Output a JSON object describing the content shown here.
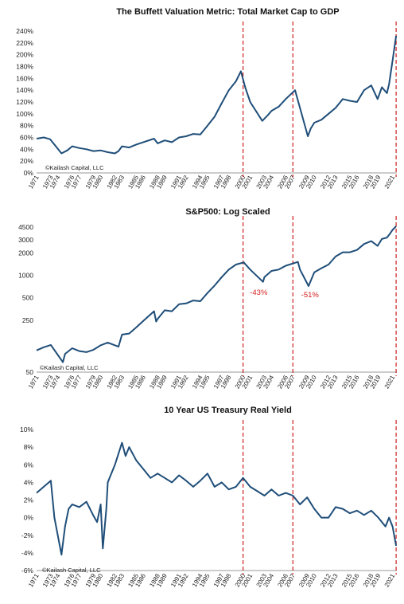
{
  "colors": {
    "line": "#1f4e79",
    "marker": "#cc1f1f",
    "axis": "#999999"
  },
  "chart_data": [
    {
      "type": "line",
      "title": "The Buffett Valuation Metric: Total Market Cap to GDP",
      "ylabel": "",
      "yscale": "linear",
      "ylim": [
        0,
        240
      ],
      "yticks": [
        0,
        20,
        40,
        60,
        80,
        100,
        120,
        140,
        160,
        180,
        200,
        220,
        240
      ],
      "ytick_labels": [
        "0%",
        "20%",
        "40%",
        "60%",
        "80%",
        "100%",
        "120%",
        "140%",
        "160%",
        "180%",
        "200%",
        "220%",
        "240%"
      ],
      "xticks": [
        1971,
        1973,
        1974,
        1976,
        1977,
        1979,
        1980,
        1982,
        1983,
        1985,
        1986,
        1988,
        1989,
        1991,
        1992,
        1994,
        1995,
        1997,
        1998,
        2000,
        2001,
        2003,
        2004,
        2006,
        2007,
        2009,
        2010,
        2012,
        2013,
        2015,
        2016,
        2018,
        2019,
        2021
      ],
      "xlim": [
        1971,
        2021.6
      ],
      "vlines": [
        2000,
        2007,
        2021.5
      ],
      "source_note": "©Kailash Capital, LLC",
      "series": [
        {
          "x": [
            1971,
            1972,
            1972.9,
            1973.5,
            1974.5,
            1975.3,
            1976,
            1977,
            1978,
            1979,
            1980,
            1981,
            1982,
            1982.5,
            1983,
            1984,
            1985,
            1986,
            1987.5,
            1988,
            1989,
            1990,
            1991,
            1992,
            1993,
            1994,
            1995,
            1996,
            1997,
            1998,
            1999,
            1999.7,
            2000.3,
            2001,
            2002.7,
            2003.5,
            2004,
            2005,
            2006,
            2007.3,
            2008,
            2009.1,
            2009.5,
            2010,
            2011,
            2012,
            2013,
            2014,
            2015,
            2016,
            2017,
            2018,
            2018.9,
            2019.5,
            2020.2,
            2020.5,
            2021,
            2021.5
          ],
          "y": [
            58,
            60,
            57,
            48,
            33,
            38,
            45,
            42,
            40,
            37,
            38,
            35,
            33,
            37,
            45,
            43,
            48,
            52,
            58,
            50,
            55,
            52,
            60,
            62,
            66,
            65,
            80,
            95,
            118,
            140,
            155,
            172,
            145,
            120,
            88,
            98,
            105,
            112,
            125,
            140,
            110,
            62,
            75,
            85,
            90,
            100,
            110,
            125,
            122,
            120,
            140,
            148,
            125,
            145,
            135,
            150,
            190,
            232
          ]
        }
      ]
    },
    {
      "type": "line",
      "title": "S&P500: Log Scaled",
      "ylabel": "",
      "yscale": "log",
      "ylim": [
        50,
        4700
      ],
      "yticks": [
        50,
        250,
        500,
        1000,
        2000,
        3000,
        4500
      ],
      "ytick_labels": [
        "50",
        "250",
        "500",
        "1000",
        "2000",
        "3000",
        "4500"
      ],
      "xticks": [
        1971,
        1973,
        1974,
        1976,
        1977,
        1979,
        1980,
        1982,
        1983,
        1985,
        1986,
        1988,
        1989,
        1991,
        1992,
        1994,
        1995,
        1997,
        1998,
        2000,
        2001,
        2003,
        2004,
        2006,
        2007,
        2009,
        2010,
        2012,
        2013,
        2015,
        2016,
        2018,
        2019,
        2021
      ],
      "xlim": [
        1971,
        2021.6
      ],
      "vlines": [
        2000,
        2007,
        2021.5
      ],
      "annotations": [
        {
          "text": "-43%",
          "x": 2002.2,
          "y": 700
        },
        {
          "text": "-51%",
          "x": 2009.4,
          "y": 650
        }
      ],
      "source_note": "©Kailash Capital, LLC",
      "series": [
        {
          "x": [
            1971,
            1972,
            1973,
            1974.7,
            1975,
            1976,
            1977,
            1978,
            1979,
            1980,
            1981,
            1982.5,
            1983,
            1984,
            1985,
            1986,
            1987.5,
            1987.8,
            1988,
            1989,
            1990,
            1991,
            1992,
            1993,
            1994,
            1995,
            1996,
            1997,
            1998,
            1999,
            2000.1,
            2001,
            2002.8,
            2003,
            2004,
            2005,
            2006,
            2007.7,
            2008,
            2009.2,
            2010,
            2011,
            2012,
            2013,
            2014,
            2015,
            2016,
            2017,
            2018,
            2018.9,
            2019.5,
            2020.2,
            2020.6,
            2021,
            2021.5
          ],
          "y": [
            98,
            108,
            116,
            68,
            88,
            105,
            96,
            93,
            100,
            115,
            125,
            110,
            160,
            165,
            200,
            245,
            330,
            240,
            260,
            340,
            330,
            410,
            420,
            460,
            450,
            580,
            730,
            950,
            1200,
            1400,
            1500,
            1200,
            820,
            950,
            1150,
            1200,
            1350,
            1520,
            1200,
            720,
            1100,
            1250,
            1400,
            1800,
            2050,
            2050,
            2200,
            2650,
            2900,
            2500,
            3100,
            3230,
            3600,
            4100,
            4600
          ]
        }
      ]
    },
    {
      "type": "line",
      "title": "10 Year US Treasury Real Yield",
      "ylabel": "",
      "yscale": "linear",
      "ylim": [
        -6,
        10
      ],
      "yticks": [
        -6,
        -4,
        -2,
        0,
        2,
        4,
        6,
        8,
        10
      ],
      "ytick_labels": [
        "-6%",
        "-4%",
        "-2%",
        "0%",
        "2%",
        "4%",
        "6%",
        "8%",
        "10%"
      ],
      "xticks": [
        1971,
        1973,
        1974,
        1976,
        1977,
        1979,
        1980,
        1982,
        1983,
        1985,
        1986,
        1988,
        1989,
        1991,
        1992,
        1994,
        1995,
        1997,
        1998,
        2000,
        2001,
        2003,
        2004,
        2006,
        2007,
        2009,
        2010,
        2012,
        2013,
        2015,
        2016,
        2018,
        2019,
        2021
      ],
      "xlim": [
        1971,
        2021.6
      ],
      "vlines": [
        2000,
        2007,
        2021.5
      ],
      "source_note": "©Kailash Capital, LLC",
      "series": [
        {
          "x": [
            1971,
            1972,
            1973,
            1973.5,
            1974.5,
            1975,
            1975.5,
            1976,
            1977,
            1978,
            1979,
            1979.5,
            1980,
            1980.3,
            1980.8,
            1981,
            1982,
            1983,
            1983.5,
            1984,
            1985,
            1986,
            1987,
            1988,
            1989,
            1990,
            1991,
            1992,
            1993,
            1994,
            1995,
            1996,
            1997,
            1998,
            1999,
            2000,
            2001,
            2002,
            2003,
            2004,
            2005,
            2006,
            2007,
            2008,
            2009,
            2010,
            2011,
            2012,
            2013,
            2014,
            2015,
            2016,
            2017,
            2018,
            2019,
            2020,
            2020.5,
            2021,
            2021.5
          ],
          "y": [
            2.8,
            3.5,
            4.2,
            0,
            -4.2,
            -1,
            1,
            1.5,
            1.2,
            1.8,
            0.2,
            -0.5,
            1.5,
            -3.5,
            1,
            4,
            6,
            8.5,
            7,
            8,
            6.5,
            5.5,
            4.5,
            5,
            4.5,
            4,
            4.8,
            4.2,
            3.5,
            4.2,
            5,
            3.5,
            4,
            3.2,
            3.5,
            4.5,
            3.5,
            3,
            2.5,
            3.2,
            2.5,
            2.8,
            2.5,
            1.5,
            2.3,
            1,
            0,
            0,
            1.2,
            1,
            0.5,
            0.8,
            0.3,
            0.8,
            0,
            -1,
            0,
            -1,
            -3.2
          ]
        }
      ]
    }
  ]
}
